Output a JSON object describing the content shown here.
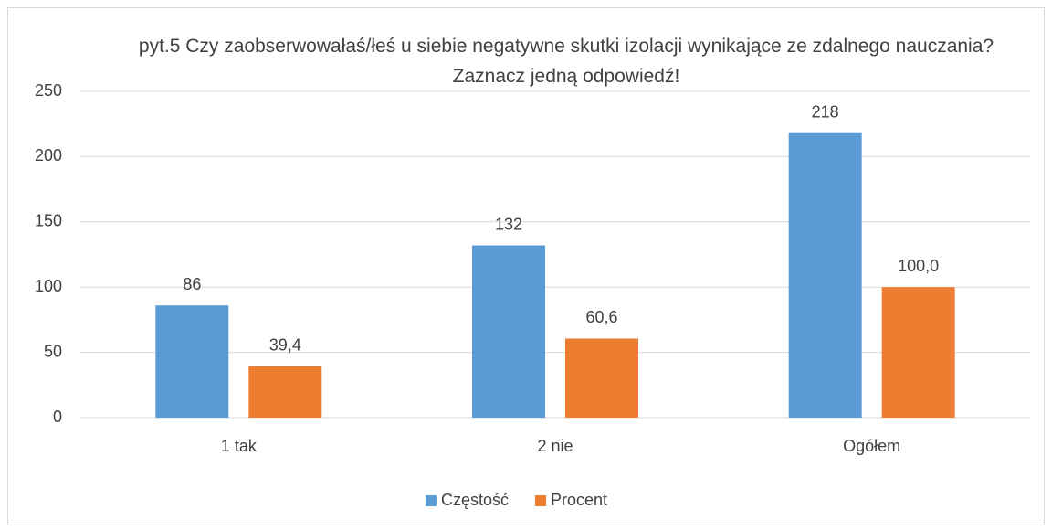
{
  "chart_data": {
    "type": "bar",
    "title": "pyt.5 Czy zaobserwowałaś/łeś u siebie negatywne skutki izolacji wynikające ze zdalnego nauczania? Zaznacz jedną odpowiedź!",
    "categories": [
      "1 tak",
      "2 nie",
      "Ogółem"
    ],
    "series": [
      {
        "name": "Częstość",
        "color": "#5b9bd5",
        "values": [
          86,
          132,
          218
        ]
      },
      {
        "name": "Procent",
        "color": "#ed7d31",
        "values": [
          39.4,
          60.6,
          100.0
        ],
        "value_labels": [
          "39,4",
          "60,6",
          "100,0"
        ]
      }
    ],
    "ylim": [
      0,
      250
    ],
    "yticks": [
      0,
      50,
      100,
      150,
      200,
      250
    ],
    "grid": true,
    "legend": "bottom"
  }
}
